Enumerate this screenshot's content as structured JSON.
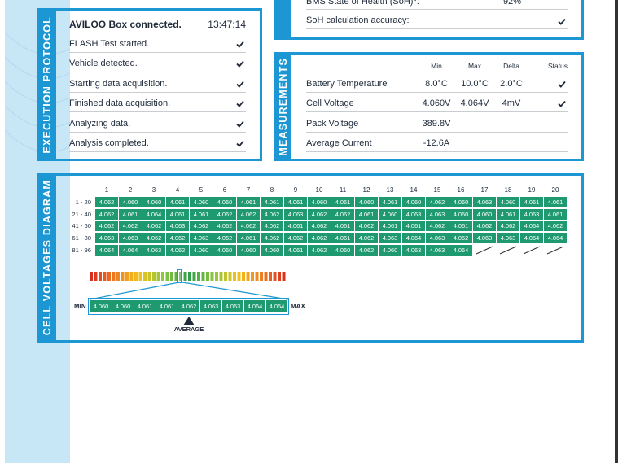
{
  "soh": {
    "label": "BMS State of Health (SoH)*:",
    "value": "92%",
    "accuracy_label": "SoH calculation accuracy:"
  },
  "execution_protocol": {
    "title": "EXECUTION PROTOCOL",
    "header": "AVILOO Box connected.",
    "time": "13:47:14",
    "steps": [
      "FLASH Test started.",
      "Vehicle detected.",
      "Starting data acquisition.",
      "Finished data acquisition.",
      "Analyzing data.",
      "Analysis completed."
    ]
  },
  "measurements": {
    "title": "MEASUREMENTS",
    "columns": [
      "Min",
      "Max",
      "Delta",
      "Status"
    ],
    "rows": [
      {
        "label": "Battery Temperature",
        "min": "8.0°C",
        "max": "10.0°C",
        "delta": "2.0°C",
        "check": true
      },
      {
        "label": "Cell Voltage",
        "min": "4.060V",
        "max": "4.064V",
        "delta": "4mV",
        "check": true
      },
      {
        "label": "Pack Voltage",
        "min": "389.8V"
      },
      {
        "label": "Average Current",
        "min": "-12.6A"
      }
    ]
  },
  "cell_voltages": {
    "title": "CELL VOLTAGES DIAGRAM",
    "columns": [
      1,
      2,
      3,
      4,
      5,
      6,
      7,
      8,
      9,
      10,
      11,
      12,
      13,
      14,
      15,
      16,
      17,
      18,
      19,
      20
    ],
    "rows": [
      {
        "label": "1 - 20",
        "values": [
          "4.062",
          "4.060",
          "4.060",
          "4.061",
          "4.060",
          "4.060",
          "4.061",
          "4.061",
          "4.061",
          "4.060",
          "4.061",
          "4.060",
          "4.061",
          "4.060",
          "4.062",
          "4.060",
          "4.063",
          "4.060",
          "4.061",
          "4.061"
        ]
      },
      {
        "label": "21 - 40",
        "values": [
          "4.062",
          "4.061",
          "4.064",
          "4.061",
          "4.061",
          "4.062",
          "4.062",
          "4.062",
          "4.063",
          "4.062",
          "4.062",
          "4.061",
          "4.060",
          "4.063",
          "4.063",
          "4.060",
          "4.060",
          "4.061",
          "4.063",
          "4.061"
        ]
      },
      {
        "label": "41 - 60",
        "values": [
          "4.062",
          "4.062",
          "4.062",
          "4.063",
          "4.062",
          "4.062",
          "4.062",
          "4.062",
          "4.061",
          "4.062",
          "4.061",
          "4.062",
          "4.061",
          "4.061",
          "4.062",
          "4.061",
          "4.062",
          "4.062",
          "4.064",
          "4.062"
        ]
      },
      {
        "label": "61 - 80",
        "values": [
          "4.063",
          "4.063",
          "4.062",
          "4.062",
          "4.063",
          "4.062",
          "4.061",
          "4.062",
          "4.062",
          "4.062",
          "4.061",
          "4.062",
          "4.063",
          "4.064",
          "4.063",
          "4.062",
          "4.063",
          "4.063",
          "4.064",
          "4.064"
        ]
      },
      {
        "label": "81 - 96",
        "values": [
          "4.064",
          "4.064",
          "4.063",
          "4.062",
          "4.060",
          "4.060",
          "4.060",
          "4.060",
          "4.061",
          "4.062",
          "4.060",
          "4.062",
          "4.060",
          "4.063",
          "4.063",
          "4.064"
        ]
      }
    ],
    "scale": {
      "min_label": "MIN",
      "max_label": "MAX",
      "average_label": "AVERAGE",
      "values": [
        "4.060",
        "4.060",
        "4.061",
        "4.061",
        "4.062",
        "4.063",
        "4.063",
        "4.064",
        "4.064"
      ]
    }
  }
}
